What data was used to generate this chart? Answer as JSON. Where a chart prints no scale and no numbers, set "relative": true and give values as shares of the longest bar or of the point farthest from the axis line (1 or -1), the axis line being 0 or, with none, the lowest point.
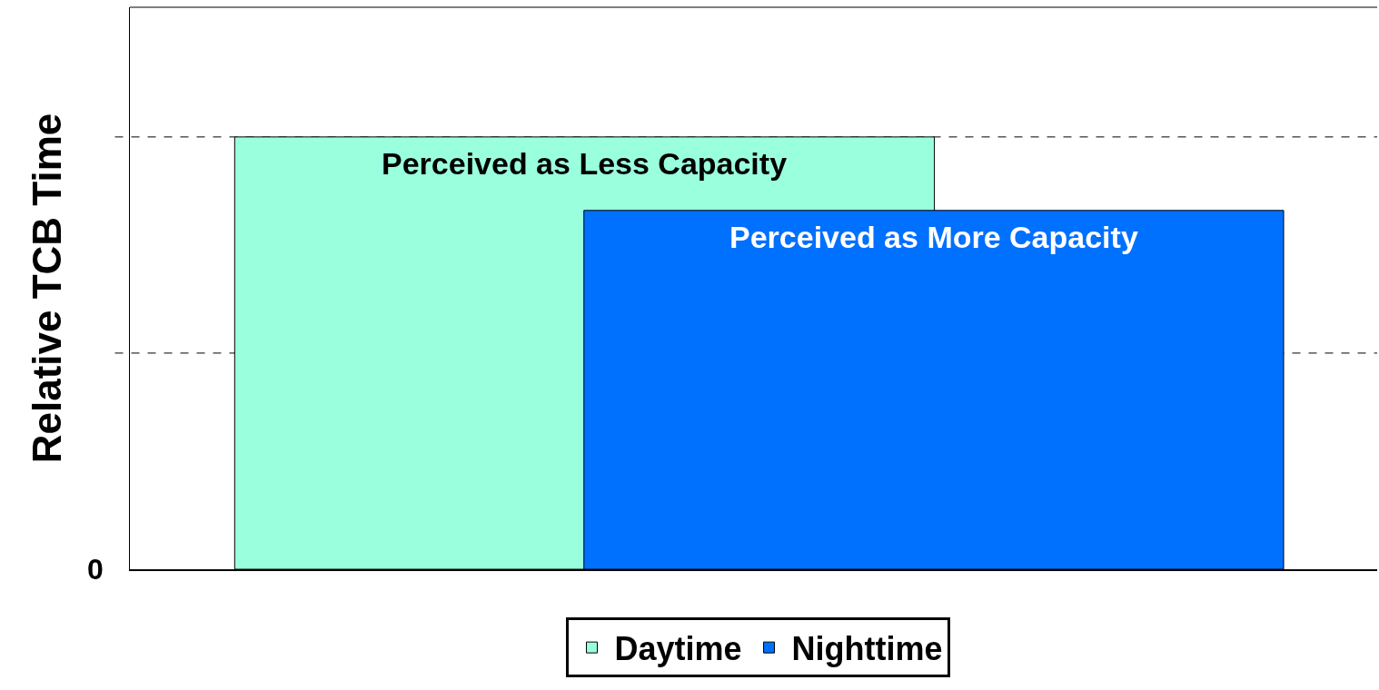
{
  "chart_data": {
    "type": "bar",
    "ylabel": "Relative TCB Time",
    "categories": [
      null
    ],
    "relative": true,
    "series": [
      {
        "name": "Daytime",
        "color": "#99ffdd",
        "values": [
          1
        ]
      },
      {
        "name": "Nighttime",
        "color": "#0070ff",
        "values": [
          0.83
        ]
      }
    ],
    "annotations": [
      "Perceived as Less Capacity",
      "Perceived as More Capacity",
      "0"
    ],
    "ref_lines": [
      {
        "axis": "y",
        "value": 0.5,
        "color": "#000000",
        "line_style": "dashed"
      },
      {
        "axis": "y",
        "value": 1,
        "color": "#000000",
        "line_style": "dashed"
      }
    ],
    "legend": "bottom"
  }
}
